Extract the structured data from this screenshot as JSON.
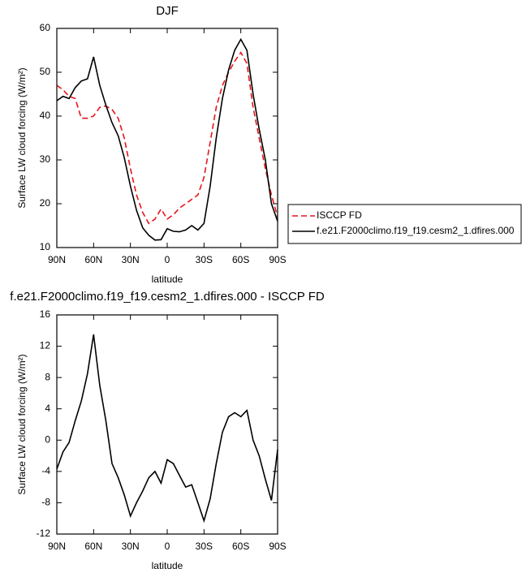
{
  "chart_data": [
    {
      "type": "line",
      "title": "DJF",
      "xlabel": "latitude",
      "ylabel": "Surface LW cloud forcing (W/m²)",
      "x": [
        90,
        85,
        80,
        75,
        70,
        65,
        60,
        55,
        50,
        45,
        40,
        35,
        30,
        25,
        20,
        15,
        10,
        5,
        0,
        -5,
        -10,
        -15,
        -20,
        -25,
        -30,
        -35,
        -40,
        -45,
        -50,
        -55,
        -60,
        -65,
        -70,
        -75,
        -80,
        -85,
        -90
      ],
      "series": [
        {
          "name": "ISCCP FD",
          "color": "#e8141c",
          "dash": true,
          "values": [
            47,
            46,
            44.5,
            44,
            39.5,
            39.5,
            40,
            42,
            42.3,
            41.5,
            39.5,
            35,
            28,
            22,
            18,
            15.5,
            16.5,
            18.8,
            16.5,
            17.5,
            19,
            20,
            21,
            22,
            26,
            34,
            42,
            47,
            50,
            52.5,
            54.5,
            52,
            42,
            35,
            28,
            22,
            17
          ]
        },
        {
          "name": "f.e21.F2000climo.f19_f19.cesm2_1.dfires.000",
          "color": "#000000",
          "dash": false,
          "values": [
            43.5,
            44.5,
            44,
            46.5,
            48,
            48.5,
            53.5,
            47,
            42.5,
            38.5,
            35.5,
            30.5,
            24,
            18.5,
            14.5,
            12.8,
            11.7,
            11.8,
            14.3,
            13.7,
            13.6,
            14,
            15,
            14,
            15.5,
            24,
            35,
            44,
            50.5,
            55,
            57.5,
            55,
            45,
            37,
            30,
            20,
            16
          ]
        }
      ],
      "xlim": [
        90,
        -90
      ],
      "xticks": [
        {
          "value": 90,
          "label": "90N"
        },
        {
          "value": 60,
          "label": "60N"
        },
        {
          "value": 30,
          "label": "30N"
        },
        0,
        {
          "value": -30,
          "label": "30S"
        },
        {
          "value": -60,
          "label": "60S"
        },
        {
          "value": -90,
          "label": "90S"
        }
      ],
      "ylim": [
        10,
        60
      ],
      "yticks": [
        10,
        20,
        30,
        40,
        50,
        60
      ],
      "legend": "right"
    },
    {
      "type": "line",
      "title": "f.e21.F2000climo.f19_f19.cesm2_1.dfires.000 - ISCCP FD",
      "xlabel": "latitude",
      "ylabel": "Surface LW cloud forcing (W/m²)",
      "x": [
        90,
        85,
        80,
        75,
        70,
        65,
        60,
        55,
        50,
        45,
        40,
        35,
        30,
        25,
        20,
        15,
        10,
        5,
        0,
        -5,
        -10,
        -15,
        -20,
        -25,
        -30,
        -35,
        -40,
        -45,
        -50,
        -55,
        -60,
        -65,
        -70,
        -75,
        -80,
        -85,
        -90
      ],
      "series": [
        {
          "color": "#000000",
          "dash": false,
          "values": [
            -3.7,
            -1.5,
            -0.3,
            2.5,
            5,
            8.5,
            13.5,
            7,
            2.5,
            -3,
            -4.8,
            -7,
            -9.7,
            -8,
            -6.5,
            -4.8,
            -4,
            -5.5,
            -2.5,
            -3,
            -4.5,
            -6,
            -5.7,
            -8,
            -10.3,
            -7.5,
            -3,
            1,
            3,
            3.5,
            3,
            3.8,
            0,
            -2,
            -5,
            -7.7,
            -1.2
          ]
        }
      ],
      "xlim": [
        90,
        -90
      ],
      "xticks": [
        {
          "value": 90,
          "label": "90N"
        },
        {
          "value": 60,
          "label": "60N"
        },
        {
          "value": 30,
          "label": "30N"
        },
        0,
        {
          "value": -30,
          "label": "30S"
        },
        {
          "value": -60,
          "label": "60S"
        },
        {
          "value": -90,
          "label": "90S"
        }
      ],
      "ylim": [
        -12,
        16
      ],
      "yticks": [
        -12,
        -8,
        -4,
        0,
        4,
        8,
        12,
        16
      ]
    }
  ]
}
